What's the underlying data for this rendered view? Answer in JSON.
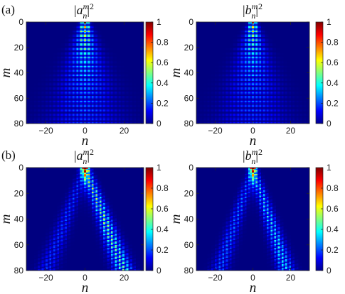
{
  "figure": {
    "row_labels": [
      "(a)",
      "(b)"
    ]
  },
  "chart_data": [
    {
      "type": "heatmap",
      "panel": "(a)",
      "title": "|a_n^m|^2",
      "title_parts": {
        "open": "|",
        "base": "a",
        "sub": "n",
        "sup": "m",
        "close": "|",
        "power": "2"
      },
      "xlabel": "n",
      "ylabel": "m",
      "xlim": [
        -30,
        30
      ],
      "ylim": [
        80,
        0
      ],
      "xticks": [
        -20,
        0,
        20
      ],
      "yticks": [
        0,
        20,
        40,
        60,
        80
      ],
      "colorbar": {
        "range": [
          0,
          1
        ],
        "ticks": [
          0,
          0.2,
          0.4,
          0.6,
          0.8,
          1
        ],
        "tick_labels": [
          "0",
          "0.2",
          "0.4",
          "0.6",
          "0.8",
          "1"
        ],
        "colormap": "jet"
      },
      "pattern": "symmetric diffraction cone centered at n = 0, strong near m = 0–25, fading as it widens downward",
      "pattern_params": {
        "mode": "symmetric",
        "width0": 1.5,
        "slope": 0.095,
        "fringe_period": 3.5,
        "peak": 1.0
      }
    },
    {
      "type": "heatmap",
      "panel": "(a)",
      "title": "|b_n^m|^2",
      "title_parts": {
        "open": "|",
        "base": "b",
        "sub": "n",
        "sup": "m",
        "close": "|",
        "power": "2"
      },
      "xlabel": "n",
      "ylabel": "m",
      "xlim": [
        -30,
        30
      ],
      "ylim": [
        80,
        0
      ],
      "xticks": [
        -20,
        0,
        20
      ],
      "yticks": [
        0,
        20,
        40,
        60,
        80
      ],
      "colorbar": {
        "range": [
          0,
          1
        ],
        "ticks": [
          0,
          0.2,
          0.4,
          0.6,
          0.8,
          1
        ],
        "tick_labels": [
          "0",
          "0.2",
          "0.4",
          "0.6",
          "0.8",
          "1"
        ],
        "colormap": "jet"
      },
      "pattern": "symmetric diffraction cone centered at n = 0, strong near m = 0–25, fading as it widens downward",
      "pattern_params": {
        "mode": "symmetric",
        "width0": 1.5,
        "slope": 0.095,
        "fringe_period": 3.5,
        "peak": 0.9
      }
    },
    {
      "type": "heatmap",
      "panel": "(b)",
      "title": "|a_n^m|^2",
      "title_parts": {
        "open": "|",
        "base": "a",
        "sub": "n",
        "sup": "m",
        "close": "|",
        "power": "2"
      },
      "xlabel": "n",
      "ylabel": "m",
      "xlim": [
        -30,
        30
      ],
      "ylim": [
        80,
        0
      ],
      "xticks": [
        -20,
        0,
        20
      ],
      "yticks": [
        0,
        20,
        40,
        60,
        80
      ],
      "colorbar": {
        "range": [
          0,
          1
        ],
        "ticks": [
          0,
          0.2,
          0.4,
          0.6,
          0.8,
          1
        ],
        "tick_labels": [
          "0",
          "0.2",
          "0.4",
          "0.6",
          "0.8",
          "1"
        ],
        "colormap": "jet"
      },
      "pattern": "V-shaped beams from n = 0 at m = 0; strong right beam reaching n ≈ 20 at m = 80, weaker left beam reaching n ≈ -20",
      "pattern_params": {
        "mode": "beams",
        "beam_slope": 0.25,
        "right_amp": 0.6,
        "left_amp": 0.22,
        "beam_width": 1.8,
        "peak": 1.0
      }
    },
    {
      "type": "heatmap",
      "panel": "(b)",
      "title": "|b_n^m|^2",
      "title_parts": {
        "open": "|",
        "base": "b",
        "sub": "n",
        "sup": "m",
        "close": "|",
        "power": "2"
      },
      "xlabel": "n",
      "ylabel": "m",
      "xlim": [
        -30,
        30
      ],
      "ylim": [
        80,
        0
      ],
      "xticks": [
        -20,
        0,
        20
      ],
      "yticks": [
        0,
        20,
        40,
        60,
        80
      ],
      "colorbar": {
        "range": [
          0,
          1
        ],
        "ticks": [
          0,
          0.2,
          0.4,
          0.6,
          0.8,
          1
        ],
        "tick_labels": [
          "0",
          "0.2",
          "0.4",
          "0.6",
          "0.8",
          "1"
        ],
        "colormap": "jet"
      },
      "pattern": "V-shaped beams from n = 0 at m = 0; right beam reaching n ≈ 18 at m = 80, weaker left beam reaching n ≈ -18",
      "pattern_params": {
        "mode": "beams",
        "beam_slope": 0.225,
        "right_amp": 0.45,
        "left_amp": 0.28,
        "beam_width": 1.6,
        "peak": 1.0
      }
    }
  ]
}
